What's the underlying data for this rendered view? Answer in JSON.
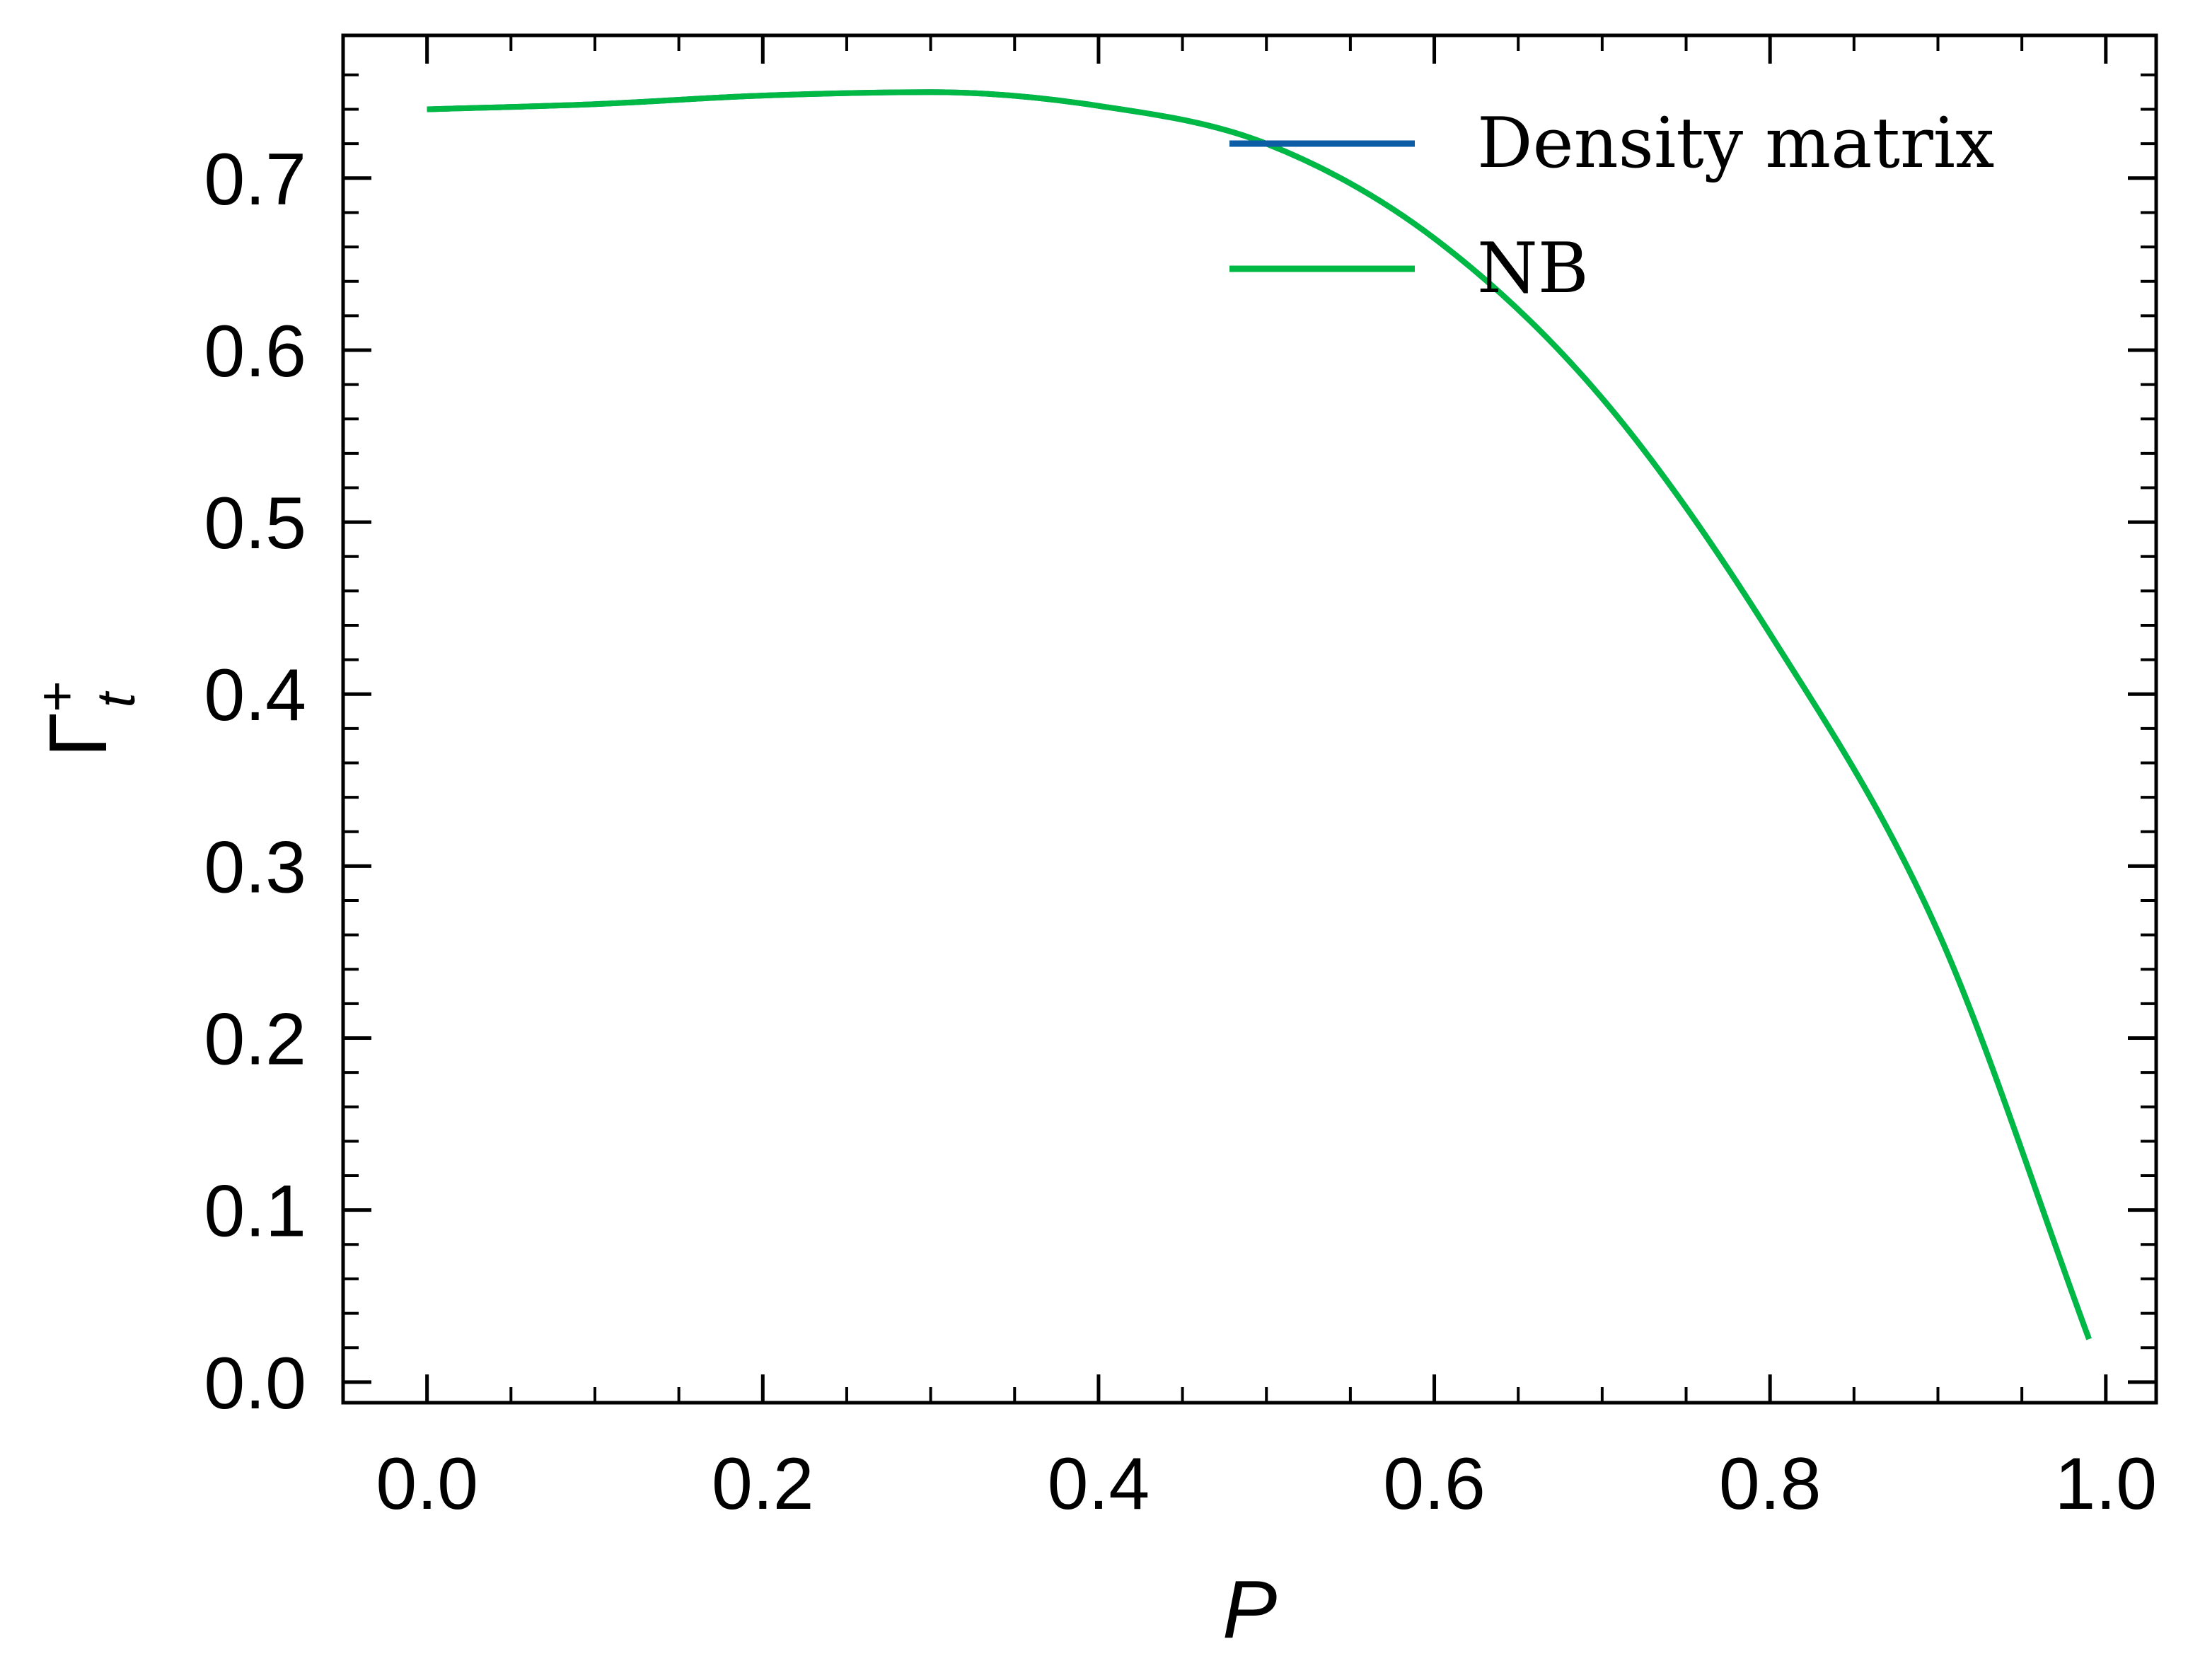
{
  "chart_data": {
    "type": "line",
    "title": "",
    "xlabel": "P",
    "ylabel": {
      "base": "Γ",
      "sup": "+",
      "sub": "t"
    },
    "xlim": [
      -0.05,
      1.03
    ],
    "ylim": [
      -0.012,
      0.783
    ],
    "xticks": [
      0.0,
      0.2,
      0.4,
      0.6,
      0.8,
      1.0
    ],
    "xtick_labels": [
      "0.0",
      "0.2",
      "0.4",
      "0.6",
      "0.8",
      "1.0"
    ],
    "yticks": [
      0.0,
      0.1,
      0.2,
      0.3,
      0.4,
      0.5,
      0.6,
      0.7
    ],
    "ytick_labels": [
      "0.0",
      "0.1",
      "0.2",
      "0.3",
      "0.4",
      "0.5",
      "0.6",
      "0.7"
    ],
    "grid": false,
    "legend_position": "top-right",
    "series": [
      {
        "name": "Density matrix",
        "color": "#0c5da5",
        "x": [
          0.0,
          0.1,
          0.2,
          0.3,
          0.4,
          0.5,
          0.6,
          0.7,
          0.8,
          0.9,
          0.99
        ],
        "y": [
          0.74,
          0.743,
          0.748,
          0.75,
          0.742,
          0.72,
          0.665,
          0.572,
          0.435,
          0.262,
          0.025
        ]
      },
      {
        "name": "NB",
        "color": "#00b945",
        "x": [
          0.0,
          0.1,
          0.2,
          0.3,
          0.4,
          0.5,
          0.6,
          0.7,
          0.8,
          0.9,
          0.99
        ],
        "y": [
          0.74,
          0.743,
          0.748,
          0.75,
          0.742,
          0.72,
          0.665,
          0.572,
          0.435,
          0.262,
          0.025
        ]
      }
    ]
  }
}
